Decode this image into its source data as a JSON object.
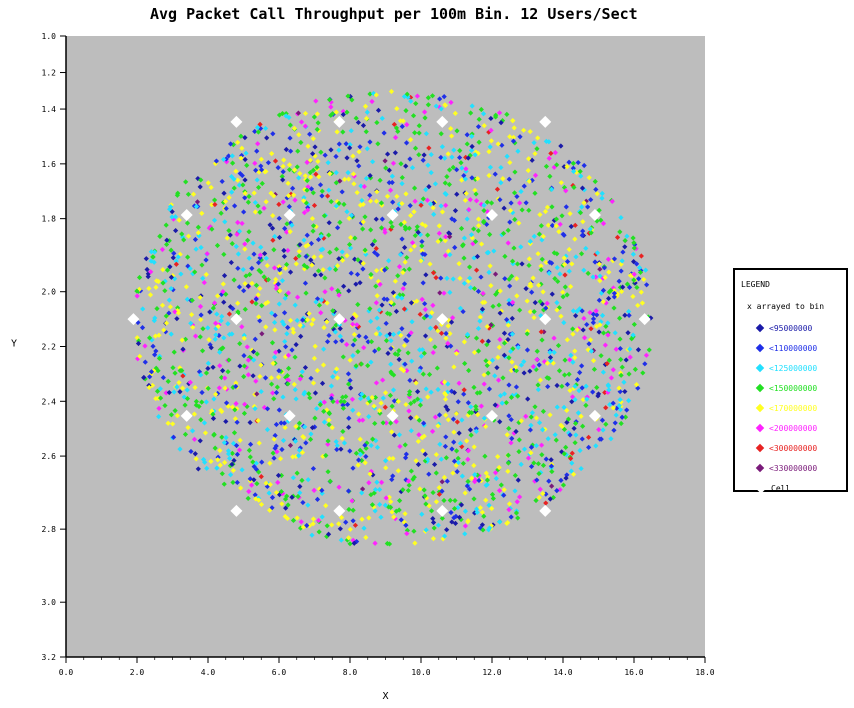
{
  "chart_data": {
    "type": "scatter",
    "title": "Avg Packet Call Throughput per 100m Bin. 12 Users/Sect",
    "xlabel": "X",
    "ylabel": "Y",
    "xlim": [
      0,
      180
    ],
    "ylim": [
      20,
      360
    ],
    "x_ticks": [
      "0.0",
      "2.0",
      "4.0",
      "6.0",
      "8.0",
      "10.0",
      "12.0",
      "14.0",
      "16.0",
      "18.0"
    ],
    "x_tick_values": [
      0,
      20,
      40,
      60,
      80,
      100,
      120,
      140,
      160,
      180
    ],
    "y_ticks": [
      "3.2",
      "3.0",
      "2.8",
      "2.6",
      "2.4",
      "2.2",
      "2.0",
      "1.8",
      "1.6",
      "1.4",
      "1.2",
      "1.0"
    ],
    "y_tick_values": [
      20,
      50,
      90,
      130,
      160,
      190,
      220,
      260,
      290,
      320,
      340,
      360
    ],
    "grid": false,
    "background_color": "#bdbdbd",
    "legend_position": "right",
    "legend": {
      "title": "LEGEND",
      "subtitle": "x arrayed to bin",
      "entries": [
        {
          "label": "<95000000",
          "color": "#1a1aa8"
        },
        {
          "label": "<110000000",
          "color": "#1f2fe8"
        },
        {
          "label": "<125000000",
          "color": "#22e0ff"
        },
        {
          "label": "<150000000",
          "color": "#22e022"
        },
        {
          "label": "<170000000",
          "color": "#ffff22"
        },
        {
          "label": "<200000000",
          "color": "#ff22ff"
        },
        {
          "label": "<300000000",
          "color": "#e82222"
        },
        {
          "label": "<330000000",
          "color": "#7a1a7a"
        },
        {
          "label": "Cell",
          "color": "#ffffff"
        }
      ]
    },
    "series": [
      {
        "name": "Cell",
        "color": "#ffffff",
        "x": [
          48,
          77,
          106,
          135,
          34,
          63,
          92,
          120,
          149,
          19,
          48,
          77,
          106,
          135,
          163,
          34,
          63,
          92,
          120,
          149,
          48,
          77,
          106,
          135
        ],
        "y": [
          313,
          313,
          313,
          313,
          262,
          262,
          262,
          262,
          262,
          205,
          205,
          205,
          205,
          205,
          205,
          152,
          152,
          152,
          152,
          152,
          100,
          100,
          100,
          100
        ]
      }
    ],
    "scatter_region": {
      "center_x": 92,
      "center_y": 205,
      "radius_x": 73,
      "radius_y": 125
    },
    "category_colors": [
      "#1a1aa8",
      "#1f2fe8",
      "#22e0ff",
      "#22e022",
      "#ffff22",
      "#ff22ff",
      "#e82222",
      "#7a1a7a"
    ],
    "category_weights": [
      0.08,
      0.14,
      0.17,
      0.24,
      0.25,
      0.09,
      0.02,
      0.01
    ],
    "point_count": 2600
  }
}
